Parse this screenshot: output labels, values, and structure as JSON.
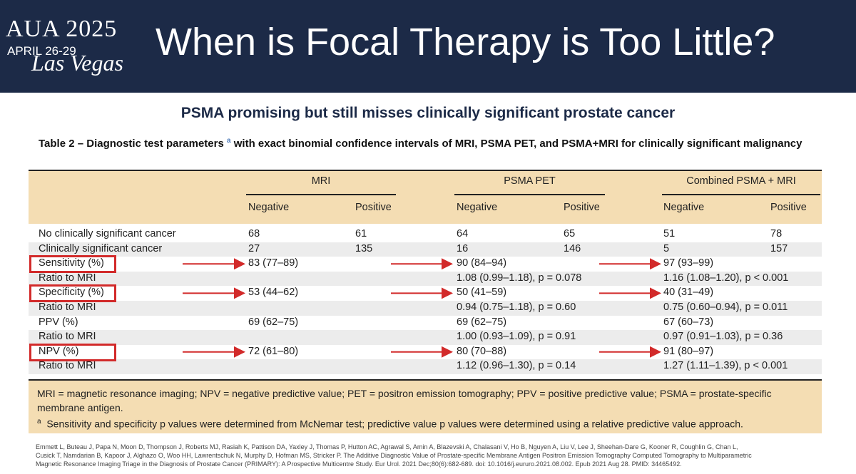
{
  "header": {
    "logo": "AUA 2025",
    "dates": "APRIL 26-29",
    "city": "Las Vegas",
    "title": "When is Focal Therapy is Too Little?"
  },
  "subtitle": "PSMA promising but still misses clinically significant prostate cancer",
  "table": {
    "caption": {
      "prefix": "Table 2 – Diagnostic test parameters",
      "marker": "a",
      "suffix": "with exact binomial confidence intervals of MRI, PSMA PET, and PSMA+MRI for clinically significant malignancy"
    },
    "groups": [
      "MRI",
      "PSMA PET",
      "Combined PSMA + MRI"
    ],
    "subheaders": [
      "Negative",
      "Positive",
      "Negative",
      "Positive",
      "Negative",
      "Positive"
    ],
    "rows": [
      [
        "No clinically significant cancer",
        "68",
        "61",
        "64",
        "65",
        "51",
        "78"
      ],
      [
        "Clinically significant cancer",
        "27",
        "135",
        "16",
        "146",
        "5",
        "157"
      ],
      [
        "Sensitivity (%)",
        "83 (77–89)",
        null,
        "90 (84–94)",
        null,
        "97 (93–99)",
        null
      ],
      [
        "Ratio to MRI",
        null,
        null,
        "1.08 (0.99–1.18), p = 0.078",
        null,
        "1.16 (1.08–1.20), p < 0.001",
        null
      ],
      [
        "Specificity (%)",
        "53 (44–62)",
        null,
        "50 (41–59)",
        null,
        "40 (31–49)",
        null
      ],
      [
        "Ratio to MRI",
        null,
        null,
        "0.94 (0.75–1.18), p = 0.60",
        null,
        "0.75 (0.60–0.94), p = 0.011",
        null
      ],
      [
        "PPV (%)",
        "69 (62–75)",
        null,
        "69 (62–75)",
        null,
        "67 (60–73)",
        null
      ],
      [
        "Ratio to MRI",
        null,
        null,
        "1.00 (0.93–1.09), p = 0.91",
        null,
        "0.97 (0.91–1.03), p = 0.36",
        null
      ],
      [
        "NPV (%)",
        "72 (61–80)",
        null,
        "80 (70–88)",
        null,
        "91 (80–97)",
        null
      ],
      [
        "Ratio to MRI",
        null,
        null,
        "1.12 (0.96–1.30), p = 0.14",
        null,
        "1.27 (1.11–1.39), p < 0.001",
        null
      ]
    ],
    "footnotes": {
      "abbreviations": "MRI = magnetic resonance imaging; NPV = negative predictive value; PET = positron emission tomography; PPV = positive predictive value; PSMA = prostate-specific membrane antigen.",
      "marker": "a",
      "note": "Sensitivity and specificity p values were determined from McNemar test; predictive value p values were determined using a relative predictive value approach."
    }
  },
  "citation": [
    "Emmett L, Buteau J, Papa N, Moon D, Thompson J, Roberts MJ, Rasiah K, Pattison DA, Yaxley J, Thomas P, Hutton AC, Agrawal S, Amin A, Blazevski A, Chalasani V, Ho B, Nguyen A, Liu V, Lee J, Sheehan-Dare G, Kooner R, Coughlin G, Chan L,",
    "Cusick T, Namdarian B, Kapoor J, Alghazo O, Woo HH, Lawrentschuk N, Murphy D, Hofman MS, Stricker P. The Additive Diagnostic Value of Prostate-specific Membrane Antigen Positron Emission Tomography Computed Tomography to Multiparametric",
    "Magnetic Resonance Imaging Triage in the Diagnosis of Prostate Cancer (PRIMARY): A Prospective Multicentre Study. Eur Urol. 2021 Dec;80(6):682-689. doi: 10.1016/j.eururo.2021.08.002. Epub 2021 Aug 28. PMID: 34465492."
  ]
}
